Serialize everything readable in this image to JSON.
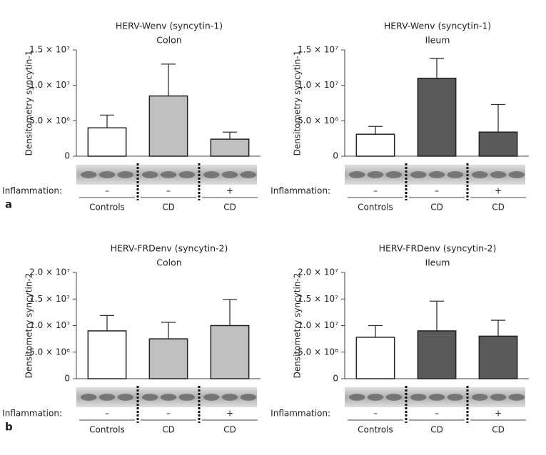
{
  "chart_data": [
    {
      "type": "bar",
      "panel": "a",
      "title": "HERV-Wenv (syncytin-1)",
      "subtitle": "Colon",
      "y_label": "Densitometry syncytin-1",
      "categories": [
        "Controls",
        "CD",
        "CD"
      ],
      "inflammation_label": "Inflammation:",
      "inflammation": [
        "–",
        "–",
        "+"
      ],
      "values": [
        4000000,
        8500000,
        2400000
      ],
      "errors": [
        1800000,
        4500000,
        1000000
      ],
      "colors": [
        "#ffffff",
        "#c0c0c0",
        "#c0c0c0"
      ],
      "ylim": [
        0,
        15000000
      ],
      "yticks": [
        0,
        {
          "value": 5000000,
          "label": "5.0 × 10⁶"
        },
        {
          "value": 10000000,
          "label": "1.0 × 10⁷"
        },
        {
          "value": 15000000,
          "label": "1.5 × 10⁷"
        }
      ]
    },
    {
      "type": "bar",
      "title": "HERV-Wenv (syncytin-1)",
      "subtitle": "Ileum",
      "y_label": "Densitometry syncytin-1",
      "categories": [
        "Controls",
        "CD",
        "CD"
      ],
      "inflammation_label": "Inflammation:",
      "inflammation": [
        "–",
        "–",
        "+"
      ],
      "values": [
        3100000,
        11000000,
        3400000
      ],
      "errors": [
        1100000,
        2800000,
        3900000
      ],
      "colors": [
        "#ffffff",
        "#5a5a5a",
        "#5a5a5a"
      ],
      "ylim": [
        0,
        15000000
      ],
      "yticks": [
        0,
        {
          "value": 5000000,
          "label": "5.0 × 10⁶"
        },
        {
          "value": 10000000,
          "label": "1.0 × 10⁷"
        },
        {
          "value": 15000000,
          "label": "1.5 × 10⁷"
        }
      ]
    },
    {
      "type": "bar",
      "panel": "b",
      "title": "HERV-FRDenv (syncytin-2)",
      "subtitle": "Colon",
      "y_label": "Densitometry syncytin-2",
      "categories": [
        "Controls",
        "CD",
        "CD"
      ],
      "inflammation_label": "Inflammation:",
      "inflammation": [
        "–",
        "–",
        "+"
      ],
      "values": [
        9000000,
        7500000,
        10000000
      ],
      "errors": [
        2900000,
        3100000,
        4900000
      ],
      "colors": [
        "#ffffff",
        "#c0c0c0",
        "#c0c0c0"
      ],
      "ylim": [
        0,
        20000000
      ],
      "yticks": [
        0,
        {
          "value": 5000000,
          "label": "5.0 × 10⁶"
        },
        {
          "value": 10000000,
          "label": "1.0 × 10⁷"
        },
        {
          "value": 15000000,
          "label": "1.5 × 10⁷"
        },
        {
          "value": 20000000,
          "label": "2.0 × 10⁷"
        }
      ]
    },
    {
      "type": "bar",
      "title": "HERV-FRDenv (syncytin-2)",
      "subtitle": "Ileum",
      "y_label": "Densitometry syncytin-2",
      "categories": [
        "Controls",
        "CD",
        "CD"
      ],
      "inflammation_label": "Inflammation:",
      "inflammation": [
        "–",
        "–",
        "+"
      ],
      "values": [
        7800000,
        9000000,
        8000000
      ],
      "errors": [
        2200000,
        5600000,
        3000000
      ],
      "colors": [
        "#ffffff",
        "#5a5a5a",
        "#5a5a5a"
      ],
      "ylim": [
        0,
        20000000
      ],
      "yticks": [
        0,
        {
          "value": 5000000,
          "label": "5.0 × 10⁶"
        },
        {
          "value": 10000000,
          "label": "1.0 × 10⁷"
        },
        {
          "value": 15000000,
          "label": "1.5 × 10⁷"
        },
        {
          "value": 20000000,
          "label": "2.0 × 10⁷"
        }
      ]
    }
  ]
}
